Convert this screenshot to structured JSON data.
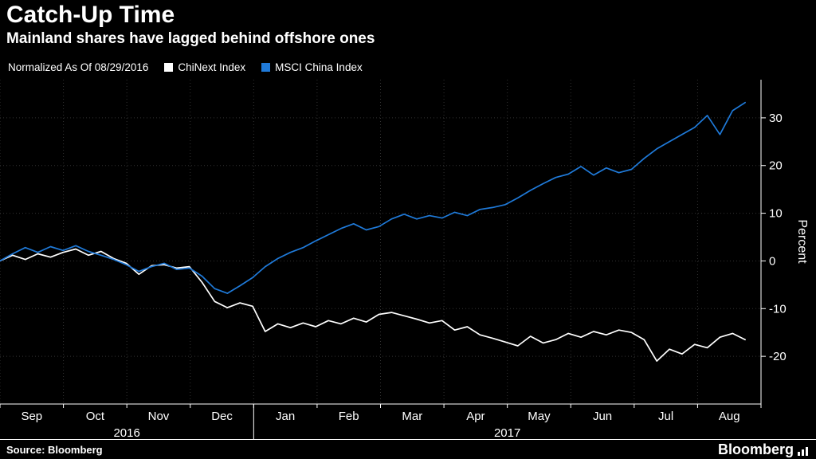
{
  "chart_data": {
    "type": "line",
    "title": "Catch-Up Time",
    "subtitle": "Mainland shares have lagged behind offshore ones",
    "normalization_note": "Normalized As Of 08/29/2016",
    "ylabel": "Percent",
    "ylim": [
      -30,
      38
    ],
    "yticks": [
      30,
      20,
      10,
      0,
      -10,
      -20
    ],
    "grid": true,
    "legend_position": "top",
    "months": [
      "Sep",
      "Oct",
      "Nov",
      "Dec",
      "Jan",
      "Feb",
      "Mar",
      "Apr",
      "May",
      "Jun",
      "Jul",
      "Aug"
    ],
    "years": [
      {
        "label": "2016",
        "from_month": 0,
        "to_month": 4
      },
      {
        "label": "2017",
        "from_month": 4,
        "to_month": 12
      }
    ],
    "series": [
      {
        "name": "ChiNext Index",
        "color": "#ffffff",
        "values": [
          0,
          1.2,
          0.3,
          1.5,
          0.8,
          1.8,
          2.5,
          1.2,
          2.0,
          0.5,
          -0.5,
          -2.8,
          -1.0,
          -0.8,
          -1.5,
          -1.2,
          -4.5,
          -8.5,
          -9.8,
          -8.8,
          -9.5,
          -14.8,
          -13.2,
          -14.0,
          -13.0,
          -13.8,
          -12.5,
          -13.2,
          -12.0,
          -12.8,
          -11.2,
          -10.8,
          -11.5,
          -12.2,
          -13.0,
          -12.5,
          -14.5,
          -13.8,
          -15.5,
          -16.2,
          -17.0,
          -17.8,
          -15.8,
          -17.2,
          -16.5,
          -15.2,
          -16.0,
          -14.8,
          -15.5,
          -14.5,
          -15.0,
          -16.5,
          -21.0,
          -18.5,
          -19.5,
          -17.5,
          -18.2,
          -16.0,
          -15.2,
          -16.5
        ]
      },
      {
        "name": "MSCI China Index",
        "color": "#1f7ad9",
        "values": [
          0,
          1.5,
          2.8,
          1.8,
          3.0,
          2.2,
          3.2,
          2.0,
          1.2,
          0.3,
          -0.8,
          -2.2,
          -1.2,
          -0.5,
          -1.8,
          -1.5,
          -3.2,
          -5.8,
          -6.8,
          -5.2,
          -3.5,
          -1.2,
          0.5,
          1.8,
          2.8,
          4.2,
          5.5,
          6.8,
          7.8,
          6.5,
          7.2,
          8.8,
          9.8,
          8.8,
          9.5,
          9.0,
          10.2,
          9.5,
          10.8,
          11.2,
          11.8,
          13.2,
          14.8,
          16.2,
          17.5,
          18.2,
          19.8,
          18.0,
          19.5,
          18.5,
          19.2,
          21.5,
          23.5,
          25.0,
          26.5,
          28.0,
          30.5,
          26.5,
          31.5,
          33.2
        ]
      }
    ]
  },
  "footer": {
    "source": "Source:  Bloomberg",
    "brand": "Bloomberg"
  },
  "colors": {
    "background": "#000000",
    "text": "#ffffff",
    "grid": "#333333",
    "axis": "#ffffff"
  }
}
